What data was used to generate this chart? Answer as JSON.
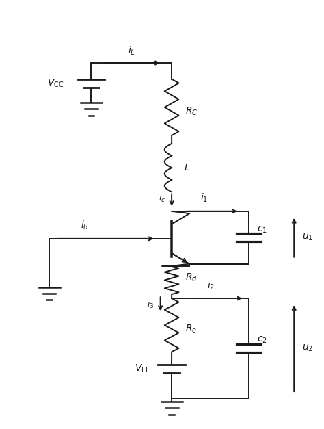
{
  "bg_color": "#ffffff",
  "line_color": "#1a1a1a",
  "figsize": [
    4.74,
    6.27
  ],
  "dpi": 100,
  "xlim": [
    0,
    10
  ],
  "ylim": [
    0,
    13.2
  ]
}
